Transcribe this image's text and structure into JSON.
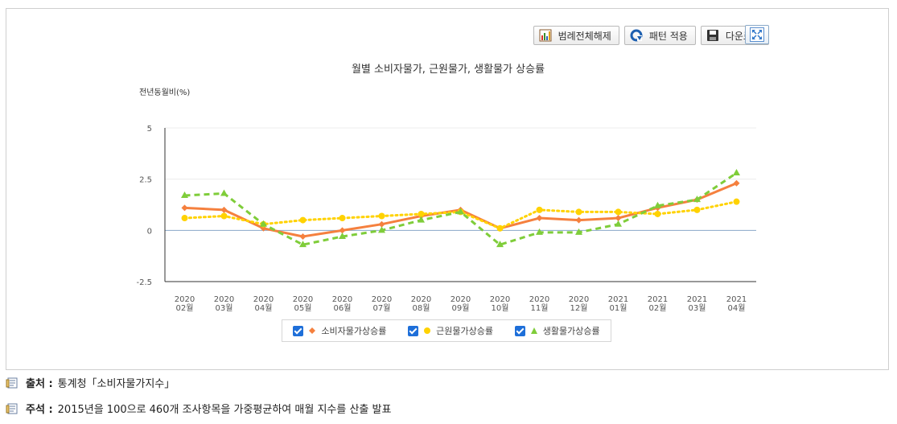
{
  "toolbar": {
    "legend_clear_label": "범례전체해제",
    "pattern_label": "패턴 적용",
    "download_label": "다운로드"
  },
  "chart_data": {
    "type": "line",
    "title": "월별 소비자물가, 근원물가, 생활물가 상승률",
    "ylabel": "전년동월비(%)",
    "ylim": [
      -2.5,
      5
    ],
    "yticks": [
      "5",
      "2.5",
      "0",
      "-2.5"
    ],
    "categories": [
      [
        "2020",
        "02월"
      ],
      [
        "2020",
        "03월"
      ],
      [
        "2020",
        "04월"
      ],
      [
        "2020",
        "05월"
      ],
      [
        "2020",
        "06월"
      ],
      [
        "2020",
        "07월"
      ],
      [
        "2020",
        "08월"
      ],
      [
        "2020",
        "09월"
      ],
      [
        "2020",
        "10월"
      ],
      [
        "2020",
        "11월"
      ],
      [
        "2020",
        "12월"
      ],
      [
        "2021",
        "01월"
      ],
      [
        "2021",
        "02월"
      ],
      [
        "2021",
        "03월"
      ],
      [
        "2021",
        "04월"
      ]
    ],
    "series": [
      {
        "name": "소비자물가상승률",
        "color": "#f5803e",
        "marker": "diamond",
        "dash": "solid",
        "values": [
          1.1,
          1.0,
          0.1,
          -0.3,
          0.0,
          0.3,
          0.7,
          1.0,
          0.1,
          0.6,
          0.5,
          0.6,
          1.1,
          1.5,
          2.3
        ]
      },
      {
        "name": "근원물가상승률",
        "color": "#ffd200",
        "marker": "circle",
        "dash": "dot",
        "values": [
          0.6,
          0.7,
          0.3,
          0.5,
          0.6,
          0.7,
          0.8,
          0.9,
          0.1,
          1.0,
          0.9,
          0.9,
          0.8,
          1.0,
          1.4
        ]
      },
      {
        "name": "생활물가상승률",
        "color": "#7fcd3a",
        "marker": "triangle",
        "dash": "dash",
        "values": [
          1.7,
          1.8,
          0.3,
          -0.7,
          -0.3,
          0.0,
          0.5,
          0.9,
          -0.7,
          -0.1,
          -0.1,
          0.3,
          1.2,
          1.5,
          2.8
        ]
      }
    ],
    "grid": true,
    "legend_position": "bottom"
  },
  "notes": {
    "source_label": "출처 :",
    "source_text": "통계청「소비자물가지수」",
    "remark_label": "주석 :",
    "remark_text": "2015년을 100으로 460개 조사항목을 가중평균하여 매월 지수를 산출 발표"
  }
}
